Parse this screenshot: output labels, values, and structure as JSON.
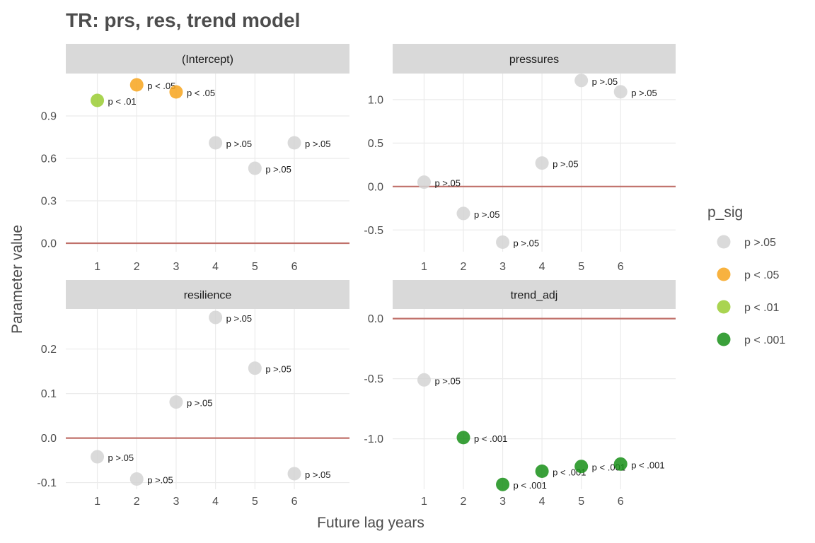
{
  "chart_data": {
    "type": "scatter",
    "title": "TR: prs, res, trend model",
    "xlabel": "Future lag years",
    "ylabel": "Parameter value",
    "grid": true,
    "reference_line": 0,
    "legend": {
      "title": "p_sig",
      "placement": "right",
      "entries": [
        {
          "label": "p >.05",
          "color": "#d3d3d3"
        },
        {
          "label": "p < .05",
          "color": "#f7a51d"
        },
        {
          "label": "p < .01",
          "color": "#9acd32"
        },
        {
          "label": "p < .001",
          "color": "#178f17"
        }
      ]
    },
    "panels": [
      {
        "strip": "(Intercept)",
        "x_ticks": [
          1,
          2,
          3,
          4,
          5,
          6
        ],
        "y_ticks": [
          0.0,
          0.3,
          0.6,
          0.9
        ],
        "y_tick_labels": [
          "0.0",
          "0.3",
          "0.6",
          "0.9"
        ],
        "ylim": [
          -0.06,
          1.2
        ],
        "xlim": [
          0.2,
          7.4
        ],
        "points": [
          {
            "x": 1,
            "y": 1.01,
            "sig": "p < .01"
          },
          {
            "x": 2,
            "y": 1.12,
            "sig": "p < .05"
          },
          {
            "x": 3,
            "y": 1.07,
            "sig": "p < .05"
          },
          {
            "x": 4,
            "y": 0.71,
            "sig": "p >.05"
          },
          {
            "x": 5,
            "y": 0.53,
            "sig": "p >.05"
          },
          {
            "x": 6,
            "y": 0.71,
            "sig": "p >.05"
          }
        ]
      },
      {
        "strip": "pressures",
        "x_ticks": [
          1,
          2,
          3,
          4,
          5,
          6
        ],
        "y_ticks": [
          -0.5,
          0.0,
          0.5,
          1.0
        ],
        "y_tick_labels": [
          "-0.5",
          "0.0",
          "0.5",
          "1.0"
        ],
        "ylim": [
          -0.75,
          1.3
        ],
        "xlim": [
          0.2,
          7.4
        ],
        "points": [
          {
            "x": 1,
            "y": 0.05,
            "sig": "p >.05"
          },
          {
            "x": 2,
            "y": -0.31,
            "sig": "p >.05"
          },
          {
            "x": 3,
            "y": -0.64,
            "sig": "p >.05"
          },
          {
            "x": 4,
            "y": 0.27,
            "sig": "p >.05"
          },
          {
            "x": 5,
            "y": 1.22,
            "sig": "p >.05"
          },
          {
            "x": 6,
            "y": 1.09,
            "sig": "p >.05"
          }
        ]
      },
      {
        "strip": "resilience",
        "x_ticks": [
          1,
          2,
          3,
          4,
          5,
          6
        ],
        "y_ticks": [
          -0.1,
          0.0,
          0.1,
          0.2
        ],
        "y_tick_labels": [
          "-0.1",
          "0.0",
          "0.1",
          "0.2"
        ],
        "ylim": [
          -0.115,
          0.29
        ],
        "xlim": [
          0.2,
          7.4
        ],
        "points": [
          {
            "x": 1,
            "y": -0.042,
            "sig": "p >.05"
          },
          {
            "x": 2,
            "y": -0.092,
            "sig": "p >.05"
          },
          {
            "x": 3,
            "y": 0.081,
            "sig": "p >.05"
          },
          {
            "x": 4,
            "y": 0.271,
            "sig": "p >.05"
          },
          {
            "x": 5,
            "y": 0.157,
            "sig": "p >.05"
          },
          {
            "x": 6,
            "y": -0.08,
            "sig": "p >.05"
          }
        ]
      },
      {
        "strip": "trend_adj",
        "x_ticks": [
          1,
          2,
          3,
          4,
          5,
          6
        ],
        "y_ticks": [
          -1.0,
          -0.5,
          0.0
        ],
        "y_tick_labels": [
          "-1.0",
          "-0.5",
          "0.0"
        ],
        "ylim": [
          -1.42,
          0.08
        ],
        "xlim": [
          0.2,
          7.4
        ],
        "points": [
          {
            "x": 1,
            "y": -0.51,
            "sig": "p >.05"
          },
          {
            "x": 2,
            "y": -0.99,
            "sig": "p < .001"
          },
          {
            "x": 3,
            "y": -1.38,
            "sig": "p < .001"
          },
          {
            "x": 4,
            "y": -1.27,
            "sig": "p < .001"
          },
          {
            "x": 5,
            "y": -1.23,
            "sig": "p < .001"
          },
          {
            "x": 6,
            "y": -1.21,
            "sig": "p < .001"
          }
        ]
      }
    ]
  },
  "colors": {
    "strip_background": "#d9d9d9",
    "gridline": "#ebebeb",
    "zero_line": "#c0706a"
  }
}
